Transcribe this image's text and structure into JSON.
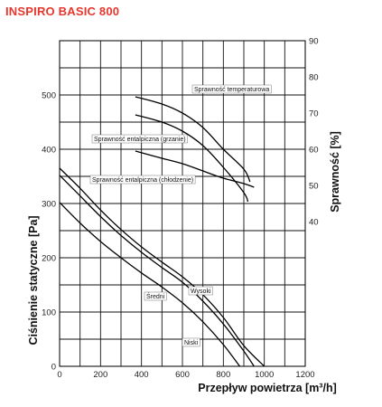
{
  "chart_data": {
    "type": "line",
    "title": "INSPIRO BASIC 800",
    "title_color": "#e8362c",
    "xlabel": "Przepływ powietrza [m³/h]",
    "ylabel_left": "Ciśnienie statyczne [Pa]",
    "ylabel_right": "Sprawność [%]",
    "xlim": [
      0,
      1200
    ],
    "ylim_left": [
      0,
      600
    ],
    "ylim_right": [
      0,
      90
    ],
    "x_ticks": [
      0,
      200,
      400,
      600,
      800,
      1000,
      1200
    ],
    "y_left_ticks": [
      0,
      100,
      200,
      300,
      400,
      500
    ],
    "y_right_ticks": [
      40,
      50,
      60,
      70,
      80,
      90
    ],
    "grid": true,
    "pressure_series": [
      {
        "name": "Wysoki",
        "x": [
          0,
          100,
          200,
          300,
          400,
          500,
          600,
          700,
          800,
          900,
          1000
        ],
        "y": [
          365,
          328,
          288,
          252,
          220,
          192,
          165,
          132,
          90,
          38,
          0
        ]
      },
      {
        "name": "Średni",
        "x": [
          0,
          100,
          200,
          300,
          400,
          500,
          600,
          700,
          800,
          900,
          950
        ],
        "y": [
          352,
          314,
          276,
          241,
          210,
          182,
          155,
          120,
          78,
          28,
          0
        ]
      },
      {
        "name": "Niski",
        "x": [
          0,
          100,
          200,
          300,
          400,
          500,
          600,
          700,
          800,
          880
        ],
        "y": [
          302,
          264,
          230,
          200,
          172,
          146,
          117,
          82,
          40,
          0
        ]
      }
    ],
    "efficiency_series": [
      {
        "name": "Sprawność temperaturowa",
        "x": [
          370,
          500,
          600,
          700,
          800,
          900,
          930
        ],
        "y": [
          74.5,
          72.5,
          70,
          66,
          60,
          54.5,
          51
        ]
      },
      {
        "name": "Sprawność entalpiczna (grzanie)",
        "x": [
          370,
          500,
          600,
          700,
          800,
          900,
          920
        ],
        "y": [
          69.5,
          67.5,
          65,
          61,
          55,
          48,
          45.5
        ]
      },
      {
        "name": "Sprawność entalpiczna (chłodzenie)",
        "x": [
          370,
          500,
          600,
          700,
          800,
          900,
          950
        ],
        "y": [
          59.5,
          57.5,
          56,
          54,
          52,
          50.5,
          49.5
        ]
      }
    ]
  }
}
